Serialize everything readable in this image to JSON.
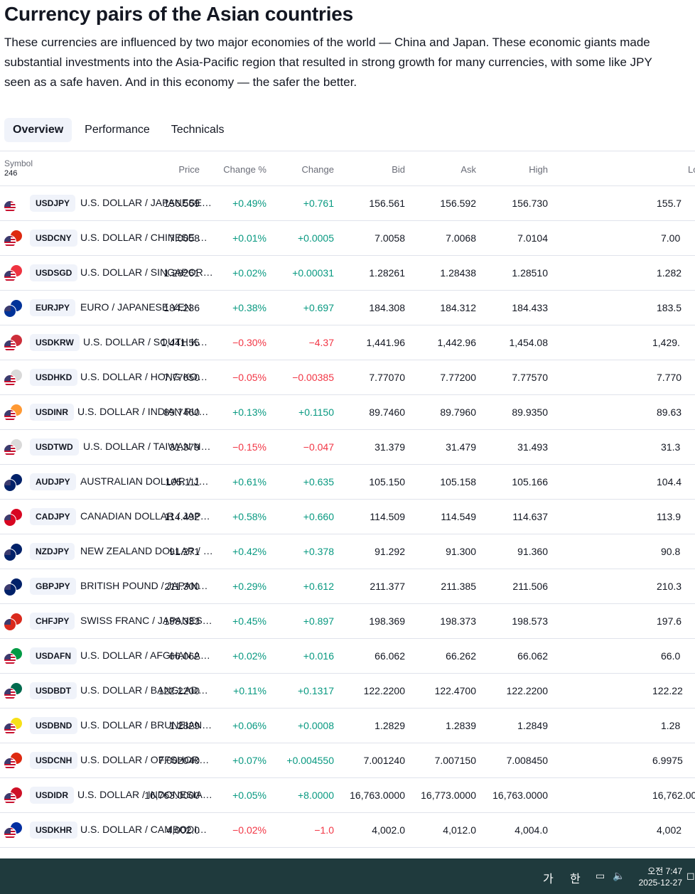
{
  "page": {
    "title": "Currency pairs of the Asian countries",
    "description": "These currencies are influenced by two major economies of the world — China and Japan. These economic giants made substantial investments into the Asia-Pacific region that resulted in strong growth for many currencies, with some like JPY seen as a safe haven. And in this economy — the safer the better."
  },
  "tabs": [
    {
      "label": "Overview",
      "active": true
    },
    {
      "label": "Performance",
      "active": false
    },
    {
      "label": "Technicals",
      "active": false
    }
  ],
  "table": {
    "symbol_header": "Symbol",
    "symbol_count": "246",
    "columns": [
      "Price",
      "Change %",
      "Change",
      "Bid",
      "Ask",
      "High",
      "Low"
    ],
    "rows": [
      {
        "ticker": "USDJPY",
        "desc": "U.S. DOLLAR / JAPANESE YEN",
        "price": "156.569",
        "chg_pct": "+0.49%",
        "chg": "+0.761",
        "bid": "156.561",
        "ask": "156.592",
        "high": "156.730",
        "low": "155.7",
        "dir": "pos",
        "flag_color": "#ffffff"
      },
      {
        "ticker": "USDCNY",
        "desc": "U.S. DOLLAR / CHINESE YUAN",
        "price": "7.0058",
        "chg_pct": "+0.01%",
        "chg": "+0.0005",
        "bid": "7.0058",
        "ask": "7.0068",
        "high": "7.0104",
        "low": "7.00",
        "dir": "pos",
        "flag_color": "#de2910"
      },
      {
        "ticker": "USDSGD",
        "desc": "U.S. DOLLAR / SINGAPORE D...",
        "price": "1.28261",
        "chg_pct": "+0.02%",
        "chg": "+0.00031",
        "bid": "1.28261",
        "ask": "1.28438",
        "high": "1.28510",
        "low": "1.282",
        "dir": "pos",
        "flag_color": "#ef3340"
      },
      {
        "ticker": "EURJPY",
        "desc": "EURO / JAPANESE YEN",
        "price": "184.236",
        "chg_pct": "+0.38%",
        "chg": "+0.697",
        "bid": "184.308",
        "ask": "184.312",
        "high": "184.433",
        "low": "183.5",
        "dir": "pos",
        "flag_color": "#003399"
      },
      {
        "ticker": "USDKRW",
        "desc": "U.S. DOLLAR / SOUTH KORE...",
        "price": "1,441.55",
        "chg_pct": "−0.30%",
        "chg": "−4.37",
        "bid": "1,441.96",
        "ask": "1,442.96",
        "high": "1,454.08",
        "low": "1,429.",
        "dir": "neg",
        "flag_color": "#cd2e3a"
      },
      {
        "ticker": "USDHKD",
        "desc": "U.S. DOLLAR / HONG KONG ...",
        "price": "7.77050",
        "chg_pct": "−0.05%",
        "chg": "−0.00385",
        "bid": "7.77070",
        "ask": "7.77200",
        "high": "7.77570",
        "low": "7.770",
        "dir": "neg",
        "flag_color": "#d9d9d9"
      },
      {
        "ticker": "USDINR",
        "desc": "U.S. DOLLAR / INDIAN RUPEE",
        "price": "89.7460",
        "chg_pct": "+0.13%",
        "chg": "+0.1150",
        "bid": "89.7460",
        "ask": "89.7960",
        "high": "89.9350",
        "low": "89.63",
        "dir": "pos",
        "flag_color": "#ff9933"
      },
      {
        "ticker": "USDTWD",
        "desc": "U.S. DOLLAR / TAIWAN NEW...",
        "price": "31.379",
        "chg_pct": "−0.15%",
        "chg": "−0.047",
        "bid": "31.379",
        "ask": "31.479",
        "high": "31.493",
        "low": "31.3",
        "dir": "neg",
        "flag_color": "#d9d9d9"
      },
      {
        "ticker": "AUDJPY",
        "desc": "AUSTRALIAN DOLLAR / JAPA...",
        "price": "105.111",
        "chg_pct": "+0.61%",
        "chg": "+0.635",
        "bid": "105.150",
        "ask": "105.158",
        "high": "105.166",
        "low": "104.4",
        "dir": "pos",
        "flag_color": "#012169"
      },
      {
        "ticker": "CADJPY",
        "desc": "CANADIAN DOLLAR / JAPANE...",
        "price": "114.492",
        "chg_pct": "+0.58%",
        "chg": "+0.660",
        "bid": "114.509",
        "ask": "114.549",
        "high": "114.637",
        "low": "113.9",
        "dir": "pos",
        "flag_color": "#d80621"
      },
      {
        "ticker": "NZDJPY",
        "desc": "NEW ZEALAND DOLLAR / JA...",
        "price": "91.271",
        "chg_pct": "+0.42%",
        "chg": "+0.378",
        "bid": "91.292",
        "ask": "91.300",
        "high": "91.360",
        "low": "90.8",
        "dir": "pos",
        "flag_color": "#012169"
      },
      {
        "ticker": "GBPJPY",
        "desc": "BRITISH POUND / JAPANESE ...",
        "price": "211.300",
        "chg_pct": "+0.29%",
        "chg": "+0.612",
        "bid": "211.377",
        "ask": "211.385",
        "high": "211.506",
        "low": "210.3",
        "dir": "pos",
        "flag_color": "#012169"
      },
      {
        "ticker": "CHFJPY",
        "desc": "SWISS FRANC / JAPANESE YEN",
        "price": "198.333",
        "chg_pct": "+0.45%",
        "chg": "+0.897",
        "bid": "198.369",
        "ask": "198.373",
        "high": "198.573",
        "low": "197.6",
        "dir": "pos",
        "flag_color": "#da291c"
      },
      {
        "ticker": "USDAFN",
        "desc": "U.S. DOLLAR / AFGHAN AFG...",
        "price": "66.062",
        "chg_pct": "+0.02%",
        "chg": "+0.016",
        "bid": "66.062",
        "ask": "66.262",
        "high": "66.062",
        "low": "66.0",
        "dir": "pos",
        "flag_color": "#009a44"
      },
      {
        "ticker": "USDBDT",
        "desc": "U.S. DOLLAR / BANGLADESH...",
        "price": "122.2200",
        "chg_pct": "+0.11%",
        "chg": "+0.1317",
        "bid": "122.2200",
        "ask": "122.4700",
        "high": "122.2200",
        "low": "122.22",
        "dir": "pos",
        "flag_color": "#006a4e"
      },
      {
        "ticker": "USDBND",
        "desc": "U.S. DOLLAR / BRUNEIAN D...",
        "price": "1.2829",
        "chg_pct": "+0.06%",
        "chg": "+0.0008",
        "bid": "1.2829",
        "ask": "1.2839",
        "high": "1.2849",
        "low": "1.28",
        "dir": "pos",
        "flag_color": "#f7e017"
      },
      {
        "ticker": "USDCNH",
        "desc": "U.S. DOLLAR / OFFSHORE C...",
        "price": "7.002040",
        "chg_pct": "+0.07%",
        "chg": "+0.004550",
        "bid": "7.001240",
        "ask": "7.007150",
        "high": "7.008450",
        "low": "6.9975",
        "dir": "pos",
        "flag_color": "#de2910"
      },
      {
        "ticker": "USDIDR",
        "desc": "U.S. DOLLAR / INDONESIAN ...",
        "price": "16,763.0000",
        "chg_pct": "+0.05%",
        "chg": "+8.0000",
        "bid": "16,763.0000",
        "ask": "16,773.0000",
        "high": "16,763.0000",
        "low": "16,762.00",
        "dir": "pos",
        "flag_color": "#ce1126"
      },
      {
        "ticker": "USDKHR",
        "desc": "U.S. DOLLAR / CAMBODIAN ...",
        "price": "4,002.0",
        "chg_pct": "−0.02%",
        "chg": "−1.0",
        "bid": "4,002.0",
        "ask": "4,012.0",
        "high": "4,004.0",
        "low": "4,002",
        "dir": "neg",
        "flag_color": "#032ea1"
      }
    ]
  },
  "taskbar": {
    "ime_ga": "가",
    "ime_han": "한",
    "time": "오전 7:47",
    "date": "2025-12-27"
  }
}
